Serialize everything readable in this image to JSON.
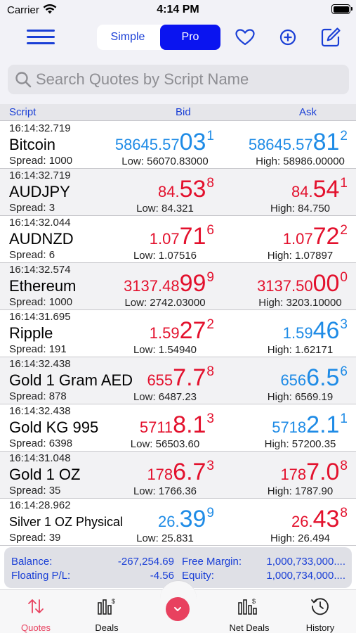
{
  "status": {
    "carrier": "Carrier",
    "time": "4:14 PM"
  },
  "nav": {
    "simple_label": "Simple",
    "pro_label": "Pro"
  },
  "search": {
    "placeholder": "Search Quotes by Script Name"
  },
  "table": {
    "col_script": "Script",
    "col_bid": "Bid",
    "col_ask": "Ask"
  },
  "rows": [
    {
      "time": "16:14:32.719",
      "name": "Bitcoin",
      "spread": "Spread: 1000",
      "bid": {
        "pre": "58645.57",
        "big": "03",
        "sup": "1",
        "dir": "up"
      },
      "ask": {
        "pre": "58645.57",
        "big": "81",
        "sup": "2",
        "dir": "up"
      },
      "low": "Low: 56070.83000",
      "high": "High: 58986.00000"
    },
    {
      "time": "16:14:32.719",
      "name": "AUDJPY",
      "spread": "Spread: 3",
      "bid": {
        "pre": "84.",
        "big": "53",
        "sup": "8",
        "dir": "down"
      },
      "ask": {
        "pre": "84.",
        "big": "54",
        "sup": "1",
        "dir": "down"
      },
      "low": "Low: 84.321",
      "high": "High: 84.750"
    },
    {
      "time": "16:14:32.044",
      "name": "AUDNZD",
      "spread": "Spread: 6",
      "bid": {
        "pre": "1.07",
        "big": "71",
        "sup": "6",
        "dir": "down"
      },
      "ask": {
        "pre": "1.07",
        "big": "72",
        "sup": "2",
        "dir": "down"
      },
      "low": "Low: 1.07516",
      "high": "High: 1.07897"
    },
    {
      "time": "16:14:32.574",
      "name": "Ethereum",
      "spread": "Spread: 1000",
      "bid": {
        "pre": "3137.48",
        "big": "99",
        "sup": "9",
        "dir": "down"
      },
      "ask": {
        "pre": "3137.50",
        "big": "00",
        "sup": "0",
        "dir": "down"
      },
      "low": "Low: 2742.03000",
      "high": "High: 3203.10000"
    },
    {
      "time": "16:14:31.695",
      "name": "Ripple",
      "spread": "Spread: 191",
      "bid": {
        "pre": "1.59",
        "big": "27",
        "sup": "2",
        "dir": "down"
      },
      "ask": {
        "pre": "1.59",
        "big": "46",
        "sup": "3",
        "dir": "up"
      },
      "low": "Low: 1.54940",
      "high": "High: 1.62171"
    },
    {
      "time": "16:14:32.438",
      "name": "Gold 1 Gram AED",
      "spread": "Spread: 878",
      "bid": {
        "pre": "655",
        "big": "7.7",
        "sup": "8",
        "dir": "down"
      },
      "ask": {
        "pre": "656",
        "big": "6.5",
        "sup": "6",
        "dir": "up"
      },
      "low": "Low: 6487.23",
      "high": "High: 6569.19"
    },
    {
      "time": "16:14:32.438",
      "name": "Gold KG 995",
      "spread": "Spread: 6398",
      "bid": {
        "pre": "5711",
        "big": "8.1",
        "sup": "3",
        "dir": "down"
      },
      "ask": {
        "pre": "5718",
        "big": "2.1",
        "sup": "1",
        "dir": "up"
      },
      "low": "Low: 56503.60",
      "high": "High: 57200.35"
    },
    {
      "time": "16:14:31.048",
      "name": "Gold 1 OZ",
      "spread": "Spread: 35",
      "bid": {
        "pre": "178",
        "big": "6.7",
        "sup": "3",
        "dir": "down"
      },
      "ask": {
        "pre": "178",
        "big": "7.0",
        "sup": "8",
        "dir": "down"
      },
      "low": "Low: 1766.36",
      "high": "High: 1787.90"
    },
    {
      "time": "16:14:28.962",
      "name": "Silver 1 OZ Physical",
      "spread": "Spread: 39",
      "bid": {
        "pre": "26.",
        "big": "39",
        "sup": "9",
        "dir": "up"
      },
      "ask": {
        "pre": "26.",
        "big": "43",
        "sup": "8",
        "dir": "down"
      },
      "low": "Low: 25.831",
      "high": "High: 26.494"
    }
  ],
  "summary": {
    "balance_label": "Balance:",
    "balance_value": "-267,254.69",
    "floating_label": "Floating P/L:",
    "floating_value": "-4.56",
    "free_margin_label": "Free Margin:",
    "free_margin_value": "1,000,733,000....",
    "equity_label": "Equity:",
    "equity_value": "1,000,734,000...."
  },
  "tabs": {
    "quotes": "Quotes",
    "deals": "Deals",
    "net_deals": "Net Deals",
    "history": "History"
  },
  "colors": {
    "accent": "#1a3fd6",
    "up": "#1e8be6",
    "down": "#e3112d",
    "active_tab": "#e8415f"
  },
  "icons": [
    "wifi-icon",
    "battery-icon",
    "menu-icon",
    "heart-icon",
    "plus-circle-icon",
    "edit-icon",
    "search-icon",
    "sort-arrows-icon",
    "deals-chart-icon",
    "chevron-down-icon",
    "net-deals-chart-icon",
    "history-clock-icon"
  ]
}
